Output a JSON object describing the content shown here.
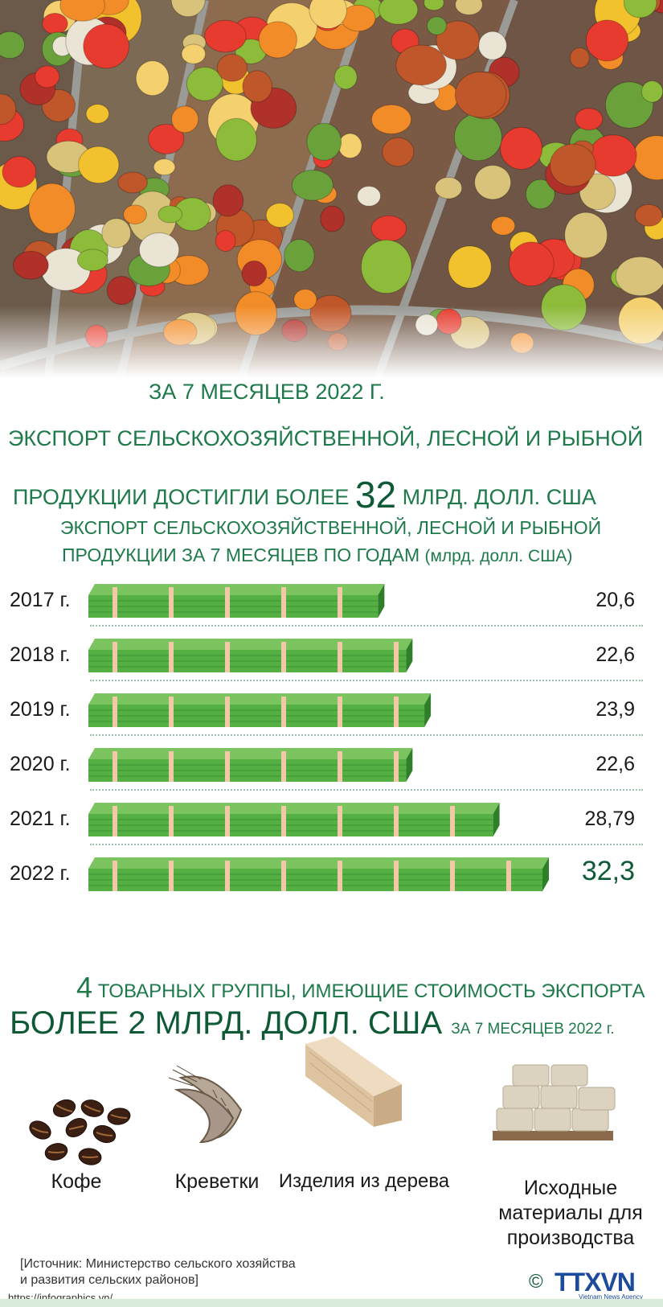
{
  "header": {
    "line1": "ЗА 7 МЕСЯЦЕВ 2022 Г.",
    "line2": "ЭКСПОРТ СЕЛЬСКОХОЗЯЙСТВЕННОЙ, ЛЕСНОЙ И РЫБНОЙ",
    "line3_pre": "ПРОДУКЦИИ ДОСТИГЛИ БОЛЕЕ",
    "line3_num": "32",
    "line3_post": "МЛРД. ДОЛЛ. США"
  },
  "chart_data": {
    "type": "bar",
    "title": "ЭКСПОРТ СЕЛЬСКОХОЗЯЙСТВЕННОЙ, ЛЕСНОЙ И РЫБНОЙ",
    "title_line2": "ПРОДУКЦИИ ЗА 7 МЕСЯЦЕВ ПО ГОДАМ",
    "unit": "(млрд. долл. США)",
    "categories": [
      "2017 г.",
      "2018 г.",
      "2019 г.",
      "2020 г.",
      "2021 г.",
      "2022 г."
    ],
    "values": [
      20.6,
      22.6,
      23.9,
      22.6,
      28.79,
      32.3
    ],
    "value_labels": [
      "20,6",
      "22,6",
      "23,9",
      "22,6",
      "28,79",
      "32,3"
    ],
    "colors": {
      "bill": "#55b043",
      "bill_dark": "#2f7f2a",
      "band": "#f1c8a8",
      "highlight": "#0f5a36"
    }
  },
  "groups": {
    "num": "4",
    "line1": "ТОВАРНЫХ ГРУППЫ, ИМЕЮЩИЕ СТОИМОСТЬ ЭКСПОРТА",
    "line2_big": "БОЛЕЕ 2 МЛРД. ДОЛЛ. США",
    "line2_small": "ЗА 7 МЕСЯЦЕВ 2022 г.",
    "items": [
      {
        "label": "Кофе",
        "icon": "coffee-beans-icon"
      },
      {
        "label": "Креветки",
        "icon": "shrimp-icon"
      },
      {
        "label": "Изделия из дерева",
        "icon": "wood-plank-icon"
      },
      {
        "label_lines": [
          "Исходные",
          "материалы для",
          "производства"
        ],
        "icon": "cement-bags-icon"
      }
    ]
  },
  "footer": {
    "source_line1": "[Источник: Министерство сельского хозяйства",
    "source_line2": "и развития сельских районов]",
    "url": "https://infographics.vn/",
    "copyright": "©",
    "logo": "TTXVN",
    "logo_sub": "Vietnam News Agency"
  }
}
